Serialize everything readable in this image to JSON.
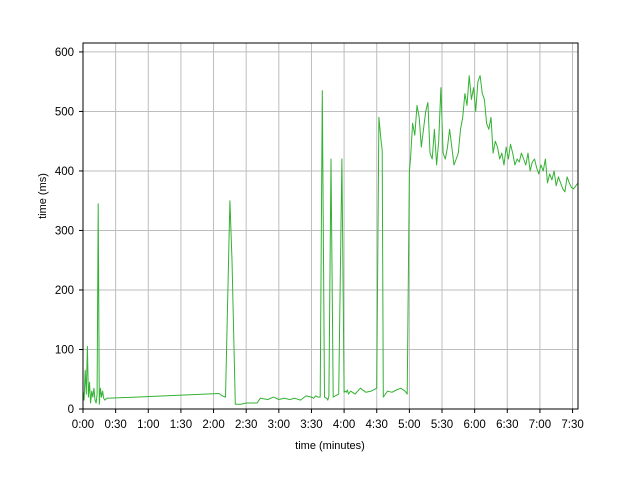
{
  "chart_data": {
    "type": "line",
    "title": "",
    "xlabel": "time (minutes)",
    "ylabel": "time (ms)",
    "xlim": [
      0,
      455
    ],
    "ylim": [
      0,
      615
    ],
    "grid": true,
    "xtick_values": [
      0,
      30,
      60,
      90,
      120,
      150,
      180,
      210,
      240,
      270,
      300,
      330,
      360,
      390,
      420,
      450
    ],
    "xtick_labels": [
      "0:00",
      "0:30",
      "1:00",
      "1:30",
      "2:00",
      "2:30",
      "3:00",
      "3:30",
      "4:00",
      "4:30",
      "5:00",
      "5:30",
      "6:00",
      "6:30",
      "7:00",
      "7:30"
    ],
    "ytick_values": [
      0,
      100,
      200,
      300,
      400,
      500,
      600
    ],
    "ytick_labels": [
      "0",
      "100",
      "200",
      "300",
      "400",
      "500",
      "600"
    ],
    "series": [
      {
        "color": "#33b233",
        "x": [
          0,
          1,
          2,
          3,
          4,
          5,
          6,
          7,
          8,
          9,
          10,
          11,
          12,
          13,
          14,
          15,
          16,
          17,
          18,
          19,
          20,
          22,
          125,
          128,
          131,
          135,
          137,
          140,
          145,
          150,
          160,
          163,
          170,
          175,
          180,
          185,
          190,
          195,
          200,
          205,
          210,
          212,
          214,
          216,
          218,
          220,
          222,
          224,
          225,
          226,
          228,
          230,
          235,
          238,
          240,
          241,
          242,
          243,
          244,
          246,
          250,
          255,
          260,
          265,
          270,
          272,
          274,
          275,
          276,
          278,
          280,
          284,
          288,
          292,
          296,
          298,
          300,
          301,
          303,
          305,
          307,
          309,
          311,
          313,
          315,
          317,
          319,
          321,
          323,
          325,
          327,
          329,
          331,
          333,
          335,
          337,
          339,
          341,
          343,
          345,
          347,
          349,
          351,
          353,
          355,
          357,
          359,
          361,
          363,
          365,
          367,
          369,
          371,
          373,
          375,
          377,
          379,
          381,
          383,
          385,
          387,
          389,
          391,
          393,
          395,
          397,
          399,
          401,
          403,
          405,
          407,
          409,
          411,
          413,
          415,
          417,
          419,
          421,
          423,
          425,
          427,
          429,
          431,
          433,
          435,
          437,
          439,
          441,
          443,
          445,
          447,
          449,
          451,
          453,
          455
        ],
        "y": [
          30,
          15,
          65,
          25,
          105,
          20,
          45,
          10,
          30,
          20,
          35,
          15,
          10,
          25,
          345,
          8,
          35,
          20,
          30,
          18,
          15,
          18,
          26,
          22,
          20,
          350,
          250,
          8,
          8,
          10,
          10,
          18,
          16,
          20,
          16,
          18,
          16,
          18,
          15,
          22,
          20,
          18,
          22,
          20,
          20,
          535,
          20,
          18,
          15,
          22,
          420,
          20,
          25,
          420,
          28,
          30,
          28,
          32,
          25,
          30,
          25,
          35,
          28,
          30,
          35,
          490,
          450,
          435,
          20,
          25,
          30,
          28,
          32,
          35,
          30,
          25,
          400,
          420,
          480,
          460,
          510,
          490,
          440,
          470,
          500,
          515,
          430,
          420,
          470,
          410,
          450,
          540,
          430,
          420,
          440,
          470,
          440,
          410,
          420,
          430,
          470,
          490,
          530,
          510,
          560,
          520,
          540,
          500,
          550,
          560,
          530,
          520,
          480,
          470,
          490,
          430,
          450,
          440,
          420,
          430,
          410,
          440,
          420,
          445,
          430,
          410,
          420,
          415,
          430,
          420,
          410,
          430,
          400,
          415,
          420,
          405,
          395,
          410,
          400,
          420,
          380,
          395,
          385,
          400,
          375,
          390,
          380,
          370,
          365,
          390,
          380,
          372,
          370,
          375,
          380
        ]
      }
    ]
  }
}
